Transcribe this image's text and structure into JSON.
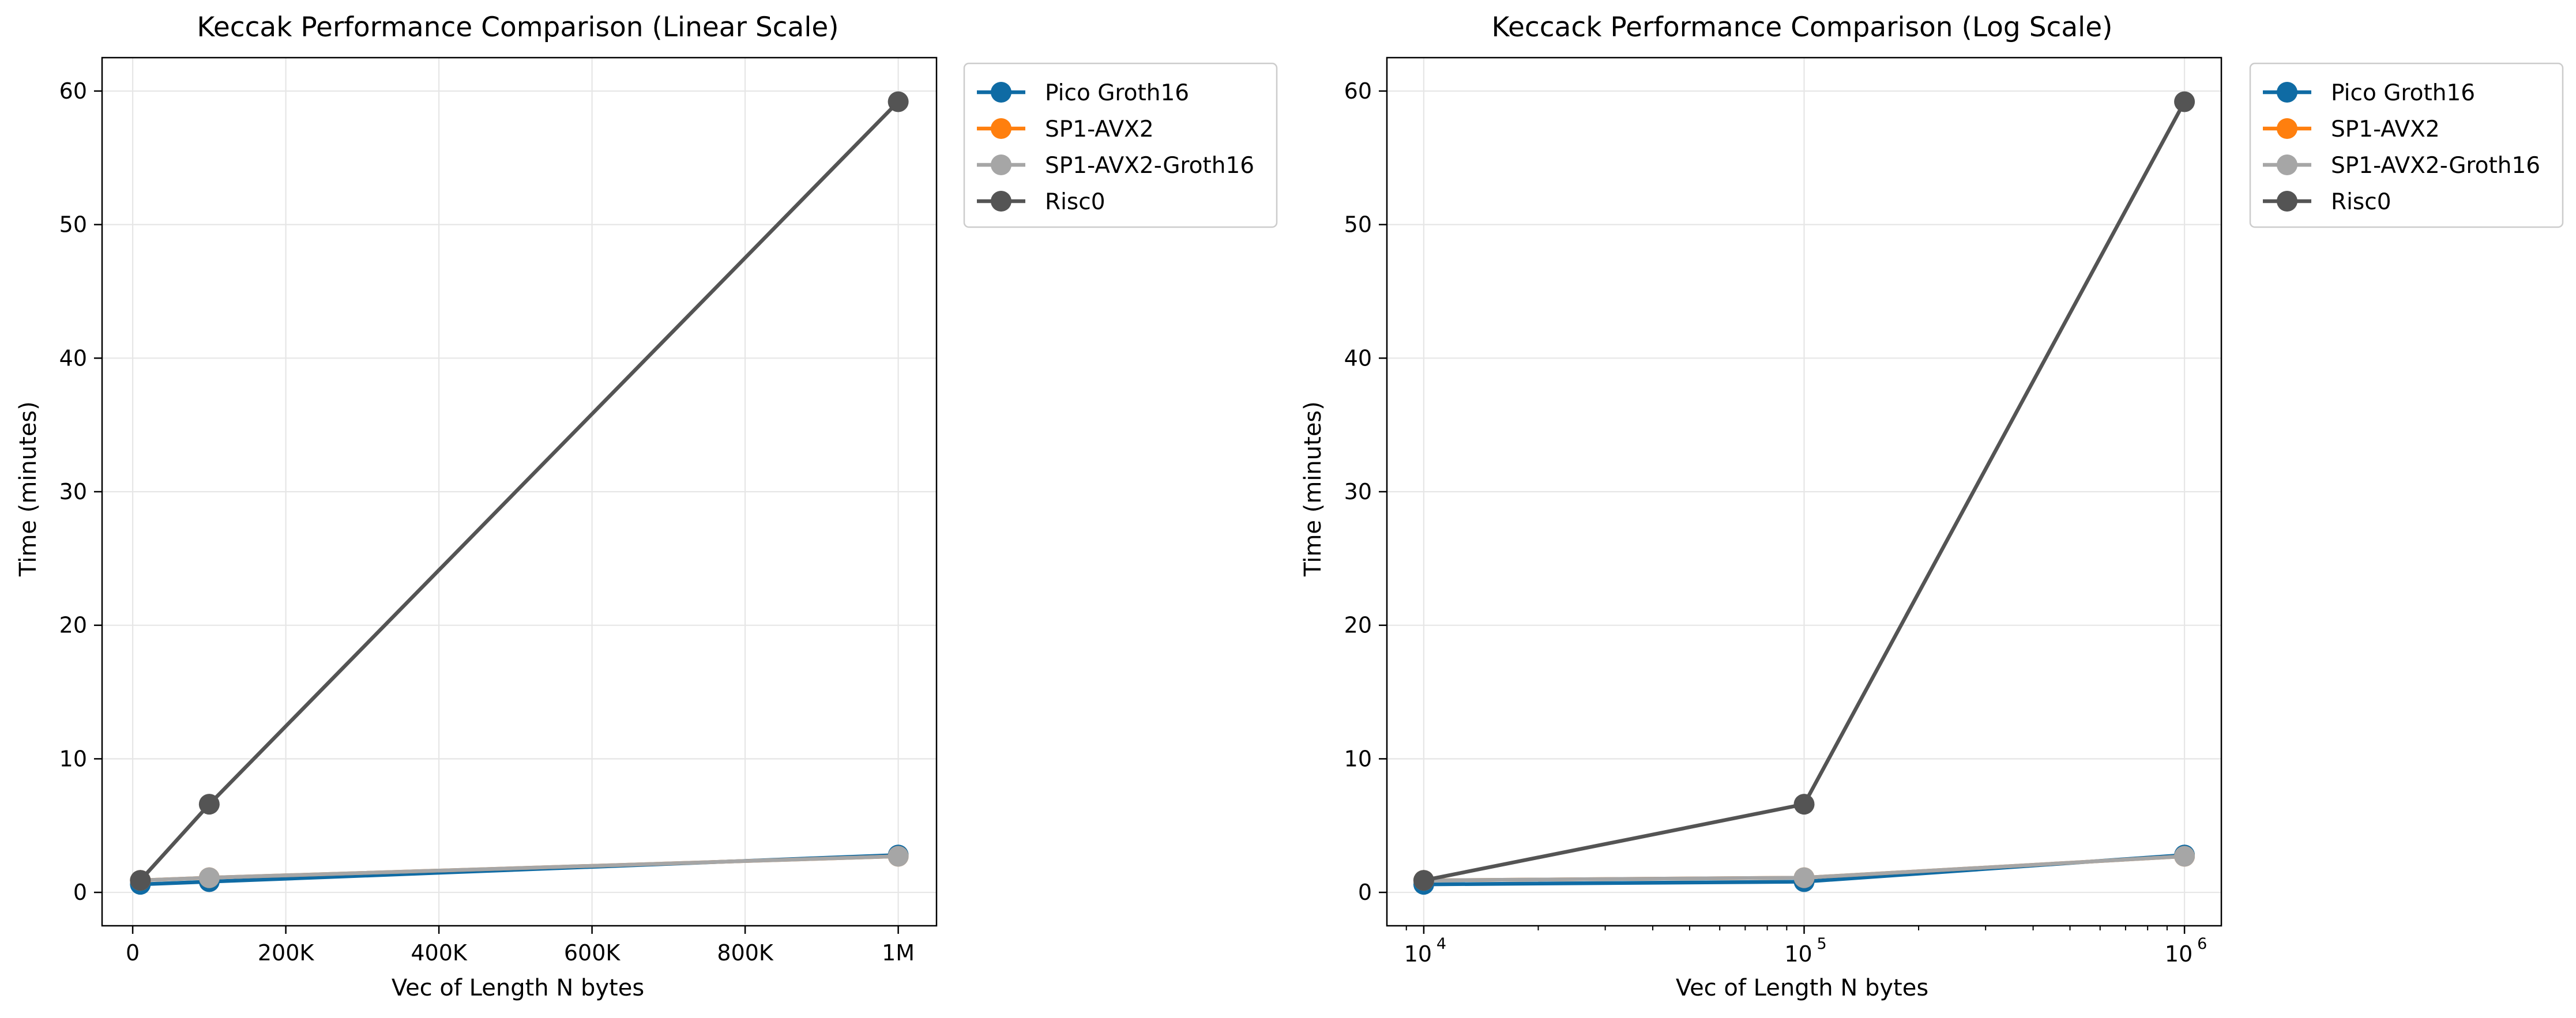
{
  "chart_data": [
    {
      "type": "line",
      "title": "Keccak Performance Comparison (Linear Scale)",
      "xlabel": "Vec of Length N bytes",
      "ylabel": "Time (minutes)",
      "xscale": "linear",
      "xlim": [
        -40000,
        1050000
      ],
      "ylim": [
        -2.5,
        62.5
      ],
      "xticks": [
        0,
        200000,
        400000,
        600000,
        800000,
        1000000
      ],
      "xtick_labels": [
        "0",
        "200K",
        "400K",
        "600K",
        "800K",
        "1M"
      ],
      "yticks": [
        0,
        10,
        20,
        30,
        40,
        50,
        60
      ],
      "ytick_labels": [
        "0",
        "10",
        "20",
        "30",
        "40",
        "50",
        "60"
      ],
      "grid": true,
      "legend_position": "outside-upper-right",
      "x": [
        10000,
        100000,
        1000000
      ],
      "series": [
        {
          "name": "Pico Groth16",
          "color": "#0f6ba4",
          "values": [
            0.6,
            0.8,
            2.8
          ]
        },
        {
          "name": "SP1-AVX2",
          "color": "#ff7f0e",
          "values": [
            0.9,
            1.1,
            2.7
          ]
        },
        {
          "name": "SP1-AVX2-Groth16",
          "color": "#a6a6a6",
          "values": [
            0.9,
            1.1,
            2.7
          ]
        },
        {
          "name": "Risc0",
          "color": "#545454",
          "values": [
            0.9,
            6.6,
            59.2
          ]
        }
      ]
    },
    {
      "type": "line",
      "title": "Keccack Performance Comparison (Log Scale)",
      "xlabel": "Vec of Length N bytes",
      "ylabel": "Time (minutes)",
      "xscale": "log",
      "xlim": [
        8000,
        1250000
      ],
      "ylim": [
        -2.5,
        62.5
      ],
      "xticks": [
        10000,
        100000,
        1000000
      ],
      "xtick_labels": [
        {
          "base": "10",
          "exp": "4"
        },
        {
          "base": "10",
          "exp": "5"
        },
        {
          "base": "10",
          "exp": "6"
        }
      ],
      "yticks": [
        0,
        10,
        20,
        30,
        40,
        50,
        60
      ],
      "ytick_labels": [
        "0",
        "10",
        "20",
        "30",
        "40",
        "50",
        "60"
      ],
      "grid": true,
      "legend_position": "outside-upper-right",
      "x": [
        10000,
        100000,
        1000000
      ],
      "series": [
        {
          "name": "Pico Groth16",
          "color": "#0f6ba4",
          "values": [
            0.6,
            0.8,
            2.8
          ]
        },
        {
          "name": "SP1-AVX2",
          "color": "#ff7f0e",
          "values": [
            0.9,
            1.1,
            2.7
          ]
        },
        {
          "name": "SP1-AVX2-Groth16",
          "color": "#a6a6a6",
          "values": [
            0.9,
            1.1,
            2.7
          ]
        },
        {
          "name": "Risc0",
          "color": "#545454",
          "values": [
            0.9,
            6.6,
            59.2
          ]
        }
      ]
    }
  ]
}
